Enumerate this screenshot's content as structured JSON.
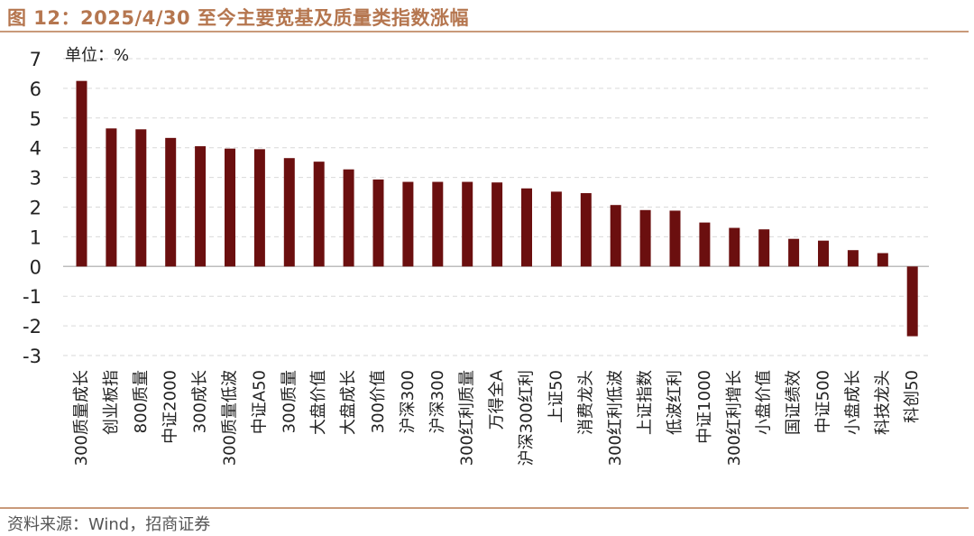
{
  "figure": {
    "title": "图 12：2025/4/30 至今主要宽基及质量类指数涨幅",
    "source": "资料来源：Wind，招商证券"
  },
  "colors": {
    "bar": "#6b0f0f",
    "title": "#b5764f",
    "rule": "#c99a7a",
    "grid": "#d9d9d9"
  },
  "chart_data": {
    "type": "bar",
    "unit_label": "单位：%",
    "categories": [
      "300质量成长",
      "创业板指",
      "800质量",
      "中证2000",
      "300成长",
      "300质量低波",
      "中证A50",
      "300质量",
      "大盘价值",
      "大盘成长",
      "300价值",
      "沪深300",
      "沪深300",
      "300红利质量",
      "万得全A",
      "沪深300红利",
      "上证50",
      "消费龙头",
      "300红利低波",
      "上证指数",
      "低波红利",
      "中证1000",
      "300红利增长",
      "小盘价值",
      "国证绩效",
      "中证500",
      "小盘成长",
      "科技龙头",
      "科创50"
    ],
    "values": [
      6.25,
      4.65,
      4.62,
      4.33,
      4.05,
      3.97,
      3.95,
      3.65,
      3.53,
      3.27,
      2.93,
      2.85,
      2.85,
      2.85,
      2.83,
      2.63,
      2.52,
      2.47,
      2.07,
      1.9,
      1.88,
      1.48,
      1.3,
      1.25,
      0.93,
      0.87,
      0.55,
      0.45,
      -2.35
    ],
    "ylim": [
      -3,
      7
    ],
    "yticks": [
      "-3",
      "-2",
      "-1",
      "0",
      "1",
      "2",
      "3",
      "4",
      "5",
      "6",
      "7"
    ],
    "grid": "horizontal dashed",
    "legend": "none"
  }
}
